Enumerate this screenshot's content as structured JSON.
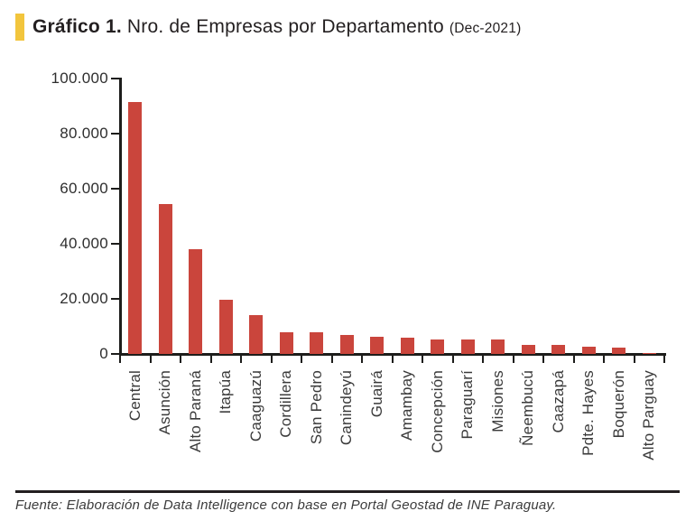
{
  "header": {
    "title_bold": "Gráfico 1.",
    "title_regular": "Nro. de Empresas por Departamento",
    "title_period": "(Dec-2021)"
  },
  "colors": {
    "marker_yellow": "#f2c53d",
    "bar_red": "#ca453c",
    "axis_black": "#1d1d1b"
  },
  "chart_data": {
    "type": "bar",
    "title": "Gráfico 1. Nro. de Empresas por Departamento (Dec-2021)",
    "xlabel": "",
    "ylabel": "",
    "grid": false,
    "legend": "none",
    "ylim": [
      0,
      100000
    ],
    "ytick_step": 20000,
    "ytick_labels": [
      "100.000",
      "80.000",
      "60.000",
      "40.000",
      "20.000",
      "0"
    ],
    "categories": [
      "Central",
      "Asunción",
      "Alto Paraná",
      "Itapúa",
      "Caaguazú",
      "Cordillera",
      "San Pedro",
      "Canindeyú",
      "Guairá",
      "Amambay",
      "Concepción",
      "Paraguarí",
      "Misiones",
      "Ñeembucú",
      "Caazapá",
      "Pdte. Hayes",
      "Boquerón",
      "Alto Parguay"
    ],
    "values": [
      91500,
      54500,
      38000,
      19800,
      14200,
      8000,
      7800,
      6900,
      6100,
      6000,
      5400,
      5300,
      5200,
      3400,
      3300,
      2500,
      2400,
      400
    ]
  },
  "footer": {
    "source_text": "Fuente: Elaboración de Data Intelligence con base en Portal Geostad de INE Paraguay."
  }
}
